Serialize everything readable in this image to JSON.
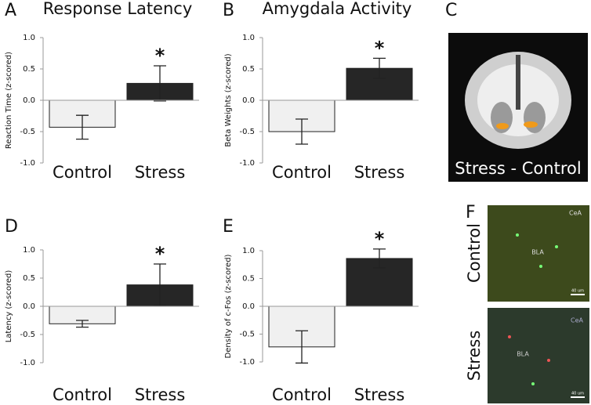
{
  "chart_data": [
    {
      "type": "bar",
      "panel_label": "A",
      "title": "Response Latency",
      "y_label": "Reaction Time (z-scored)",
      "categories": [
        "Control",
        "Stress"
      ],
      "values": [
        -0.43,
        0.27
      ],
      "errors": [
        0.19,
        0.28
      ],
      "colors": [
        "#f0f0f0",
        "#262626"
      ],
      "ylim": [
        -1,
        1
      ],
      "yticks": [
        {
          "value": -1,
          "label": "-1.0"
        },
        -0.5,
        {
          "value": 0,
          "label": "0.0"
        },
        0.5,
        {
          "value": 1,
          "label": "1.0"
        }
      ],
      "annotation": "*"
    },
    {
      "type": "bar",
      "panel_label": "B",
      "title": "Amygdala Activity",
      "y_label": "Beta Weights (z-scored)",
      "categories": [
        "Control",
        "Stress"
      ],
      "values": [
        -0.5,
        0.51
      ],
      "errors": [
        0.2,
        0.16
      ],
      "colors": [
        "#f0f0f0",
        "#262626"
      ],
      "ylim": [
        -1,
        1
      ],
      "yticks": [
        {
          "value": -1,
          "label": "-1.0"
        },
        -0.5,
        {
          "value": 0,
          "label": "0.0"
        },
        0.5,
        {
          "value": 1,
          "label": "1.0"
        }
      ],
      "annotation": "*"
    },
    {
      "type": "bar",
      "panel_label": "D",
      "y_label": "Latency (z-scored)",
      "categories": [
        "Control",
        "Stress"
      ],
      "values": [
        -0.31,
        0.38
      ],
      "errors": [
        0.06,
        0.37
      ],
      "colors": [
        "#f0f0f0",
        "#262626"
      ],
      "ylim": [
        -1,
        1
      ],
      "yticks": [
        {
          "value": -1,
          "label": "-1.0"
        },
        -0.5,
        {
          "value": 0,
          "label": "0.0"
        },
        0.5,
        {
          "value": 1,
          "label": "1.0"
        }
      ],
      "annotation": "*"
    },
    {
      "type": "bar",
      "panel_label": "E",
      "y_label": "Density of c-Fos (z-scored)",
      "categories": [
        "Control",
        "Stress"
      ],
      "values": [
        -0.73,
        0.86
      ],
      "errors": [
        0.29,
        0.17
      ],
      "colors": [
        "#f0f0f0",
        "#262626"
      ],
      "ylim": [
        -1,
        1
      ],
      "yticks": [
        {
          "value": -1,
          "label": "-1.0"
        },
        -0.5,
        {
          "value": 0,
          "label": "0.0"
        },
        0.5,
        {
          "value": 1,
          "label": "1.0"
        }
      ],
      "annotation": "*"
    }
  ],
  "images": {
    "C": {
      "panel_label": "C",
      "caption": "Stress - Control"
    },
    "F": {
      "panel_label": "F",
      "rows": [
        {
          "label": "Control",
          "regions": [
            "CeA",
            "BLA"
          ],
          "scale": "40 um"
        },
        {
          "label": "Stress",
          "regions": [
            "CeA",
            "BLA"
          ],
          "scale": "40 um"
        }
      ]
    }
  }
}
